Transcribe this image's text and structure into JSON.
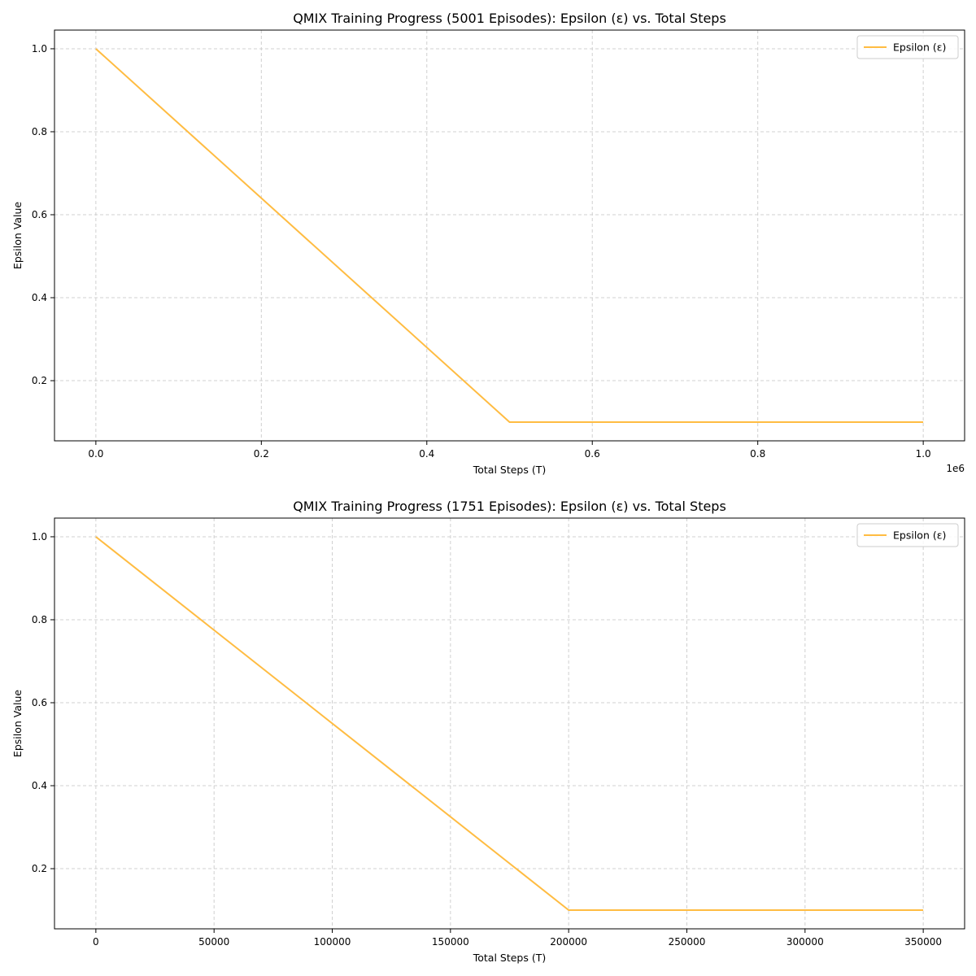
{
  "chart_data": [
    {
      "type": "line",
      "title": "QMIX Training Progress (5001 Episodes): Epsilon (ε) vs. Total Steps",
      "xlabel": "Total Steps (T)",
      "ylabel": "Epsilon Value",
      "x_offset_label": "1e6",
      "xlim": [
        -0.05,
        1.05
      ],
      "ylim": [
        0.055,
        1.045
      ],
      "xticks": [
        0.0,
        0.2,
        0.4,
        0.6,
        0.8,
        1.0
      ],
      "xtick_labels": [
        "0.0",
        "0.2",
        "0.4",
        "0.6",
        "0.8",
        "1.0"
      ],
      "yticks": [
        0.2,
        0.4,
        0.6,
        0.8,
        1.0
      ],
      "ytick_labels": [
        "0.2",
        "0.4",
        "0.6",
        "0.8",
        "1.0"
      ],
      "grid": true,
      "legend_position": "top-right",
      "series": [
        {
          "name": "Epsilon (ε)",
          "color": "#ffbc42",
          "x": [
            0.0,
            0.5,
            1.0
          ],
          "y": [
            1.0,
            0.1,
            0.1
          ]
        }
      ]
    },
    {
      "type": "line",
      "title": "QMIX Training Progress (1751 Episodes): Epsilon (ε) vs. Total Steps",
      "xlabel": "Total Steps (T)",
      "ylabel": "Epsilon Value",
      "x_offset_label": "",
      "xlim": [
        -17500,
        367500
      ],
      "ylim": [
        0.055,
        1.045
      ],
      "xticks": [
        0,
        50000,
        100000,
        150000,
        200000,
        250000,
        300000,
        350000
      ],
      "xtick_labels": [
        "0",
        "50000",
        "100000",
        "150000",
        "200000",
        "250000",
        "300000",
        "350000"
      ],
      "yticks": [
        0.2,
        0.4,
        0.6,
        0.8,
        1.0
      ],
      "ytick_labels": [
        "0.2",
        "0.4",
        "0.6",
        "0.8",
        "1.0"
      ],
      "grid": true,
      "legend_position": "top-right",
      "series": [
        {
          "name": "Epsilon (ε)",
          "color": "#ffbc42",
          "x": [
            0,
            200000,
            350000
          ],
          "y": [
            1.0,
            0.1,
            0.1
          ]
        }
      ]
    }
  ]
}
